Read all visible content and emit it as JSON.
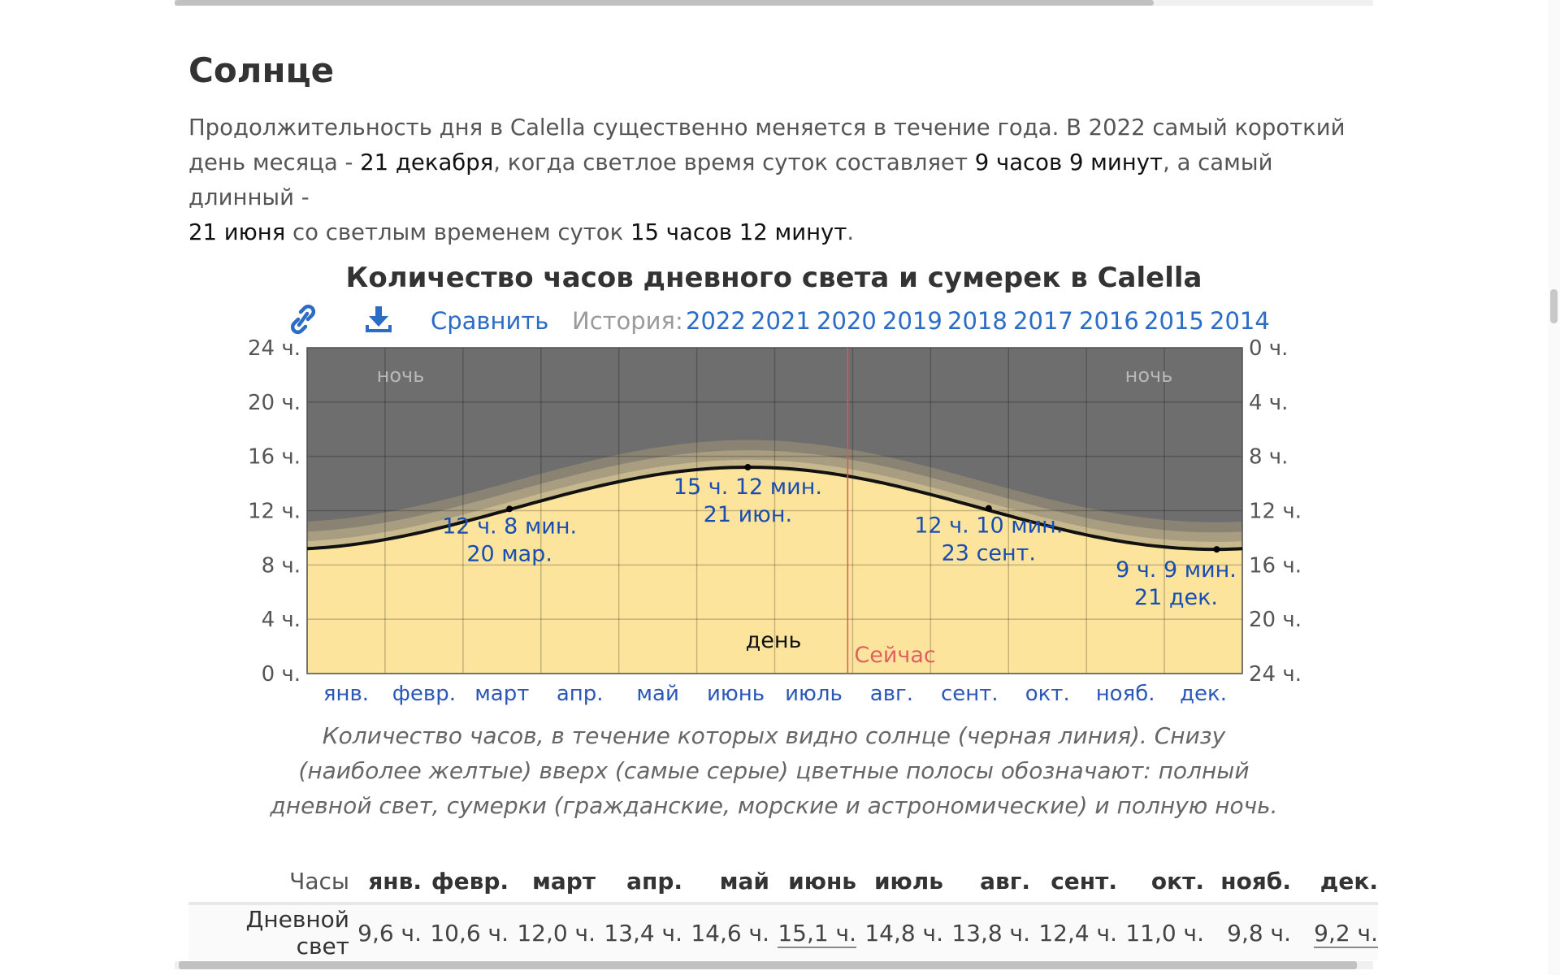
{
  "section": {
    "title": "Солнце",
    "paragraph": {
      "p1": "Продолжительность дня в Calella существенно меняется в течение года. В 2022 самый короткий день месяца - ",
      "shortest_date": "21 декабря",
      "p2": ", когда светлое время суток составляет ",
      "shortest_duration": "9 часов 9 минут",
      "p3": ", а самый длинный - ",
      "longest_date": "21 июня",
      "p4": " со светлым временем суток ",
      "longest_duration": "15 часов 12 минут",
      "p5": "."
    }
  },
  "chart_toolbar": {
    "link_icon": "link-icon",
    "download_icon": "download-icon",
    "compare_label": "Сравнить",
    "history_label": "История:",
    "years": [
      "2022",
      "2021",
      "2020",
      "2019",
      "2018",
      "2017",
      "2016",
      "2015",
      "2014"
    ]
  },
  "chart_data": {
    "type": "area",
    "title": "Количество часов дневного света и сумерек в Calella",
    "x_categories": [
      "янв.",
      "февр.",
      "март",
      "апр.",
      "май",
      "июнь",
      "июль",
      "авг.",
      "сент.",
      "окт.",
      "нояб.",
      "дек."
    ],
    "y_left_ticks": [
      "0 ч.",
      "4 ч.",
      "8 ч.",
      "12 ч.",
      "16 ч.",
      "20 ч.",
      "24 ч."
    ],
    "y_right_ticks": [
      "24 ч.",
      "20 ч.",
      "16 ч.",
      "12 ч.",
      "8 ч.",
      "4 ч.",
      "0 ч."
    ],
    "ylim": [
      0,
      24
    ],
    "xlim": [
      0,
      365
    ],
    "daylight_min_hours": 9.15,
    "daylight_max_hours": 15.2,
    "longest_day_of_year": 172,
    "twilight_band_hours": {
      "civil": 0.55,
      "nautical": 0.7,
      "astronomical": 0.75
    },
    "band_labels": {
      "night_left": "ночь",
      "night_right": "ночь",
      "day": "день"
    },
    "colors": {
      "night": "#6e6e6e",
      "astronomical": "#8a8374",
      "nautical": "#a89d80",
      "civil": "#c8b88e",
      "day": "#fce49c",
      "line": "#111111",
      "now": "#e05555"
    },
    "now_marker": {
      "day_of_year": 211,
      "label": "Сейчас"
    },
    "annotations": [
      {
        "day_of_year": 79,
        "hours": 12.13,
        "line1": "12 ч. 8 мин.",
        "line2": "20 мар.",
        "placement": "below"
      },
      {
        "day_of_year": 172,
        "hours": 15.2,
        "line1": "15 ч. 12 мин.",
        "line2": "21 июн.",
        "placement": "below"
      },
      {
        "day_of_year": 266,
        "hours": 12.17,
        "line1": "12 ч. 10 мин.",
        "line2": "23 сент.",
        "placement": "above-below"
      },
      {
        "day_of_year": 355,
        "hours": 9.15,
        "line1": "9 ч. 9 мин.",
        "line2": "21 дек.",
        "placement": "below-left"
      }
    ],
    "caption": "Количество часов, в течение которых видно солнце (черная линия). Снизу (наиболее желтые) вверх (самые серые) цветные полосы обозначают: полный дневной свет, сумерки (гражданские, морские и астрономические) и полную ночь."
  },
  "hours_table": {
    "header_label": "Часы",
    "months": [
      "янв.",
      "февр.",
      "март",
      "апр.",
      "май",
      "июнь",
      "июль",
      "авг.",
      "сент.",
      "окт.",
      "нояб.",
      "дек."
    ],
    "row_label": "Дневной свет",
    "values": [
      "9,6 ч.",
      "10,6 ч.",
      "12,0 ч.",
      "13,4 ч.",
      "14,6 ч.",
      "15,1 ч.",
      "14,8 ч.",
      "13,8 ч.",
      "12,4 ч.",
      "11,0 ч.",
      "9,8 ч.",
      "9,2 ч."
    ]
  }
}
